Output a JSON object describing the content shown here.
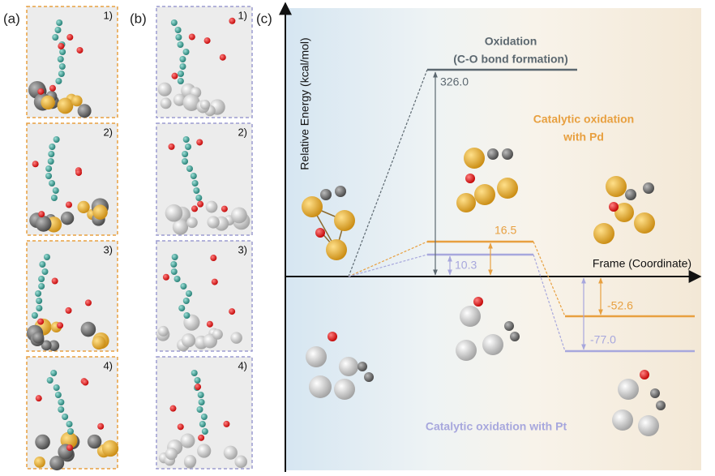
{
  "panels": [
    {
      "label": "(a)",
      "snapshots": [
        "1)",
        "2)",
        "3)",
        "4)"
      ]
    },
    {
      "label": "(b)",
      "snapshots": [
        "1)",
        "2)",
        "3)",
        "4)"
      ]
    },
    {
      "label": "(c)",
      "y_axis_label": "Relative Energy (kcal/mol)",
      "x_axis_label": "Frame (Coordinate)",
      "energies": [
        "326.0",
        "16.5",
        "10.3",
        "-52.6",
        "-77.0"
      ],
      "annotations": [
        "Oxidation",
        "(C-O bond formation)",
        "Catalytic oxidation",
        "with Pd",
        "Catalytic oxidation with Pt"
      ]
    }
  ]
}
